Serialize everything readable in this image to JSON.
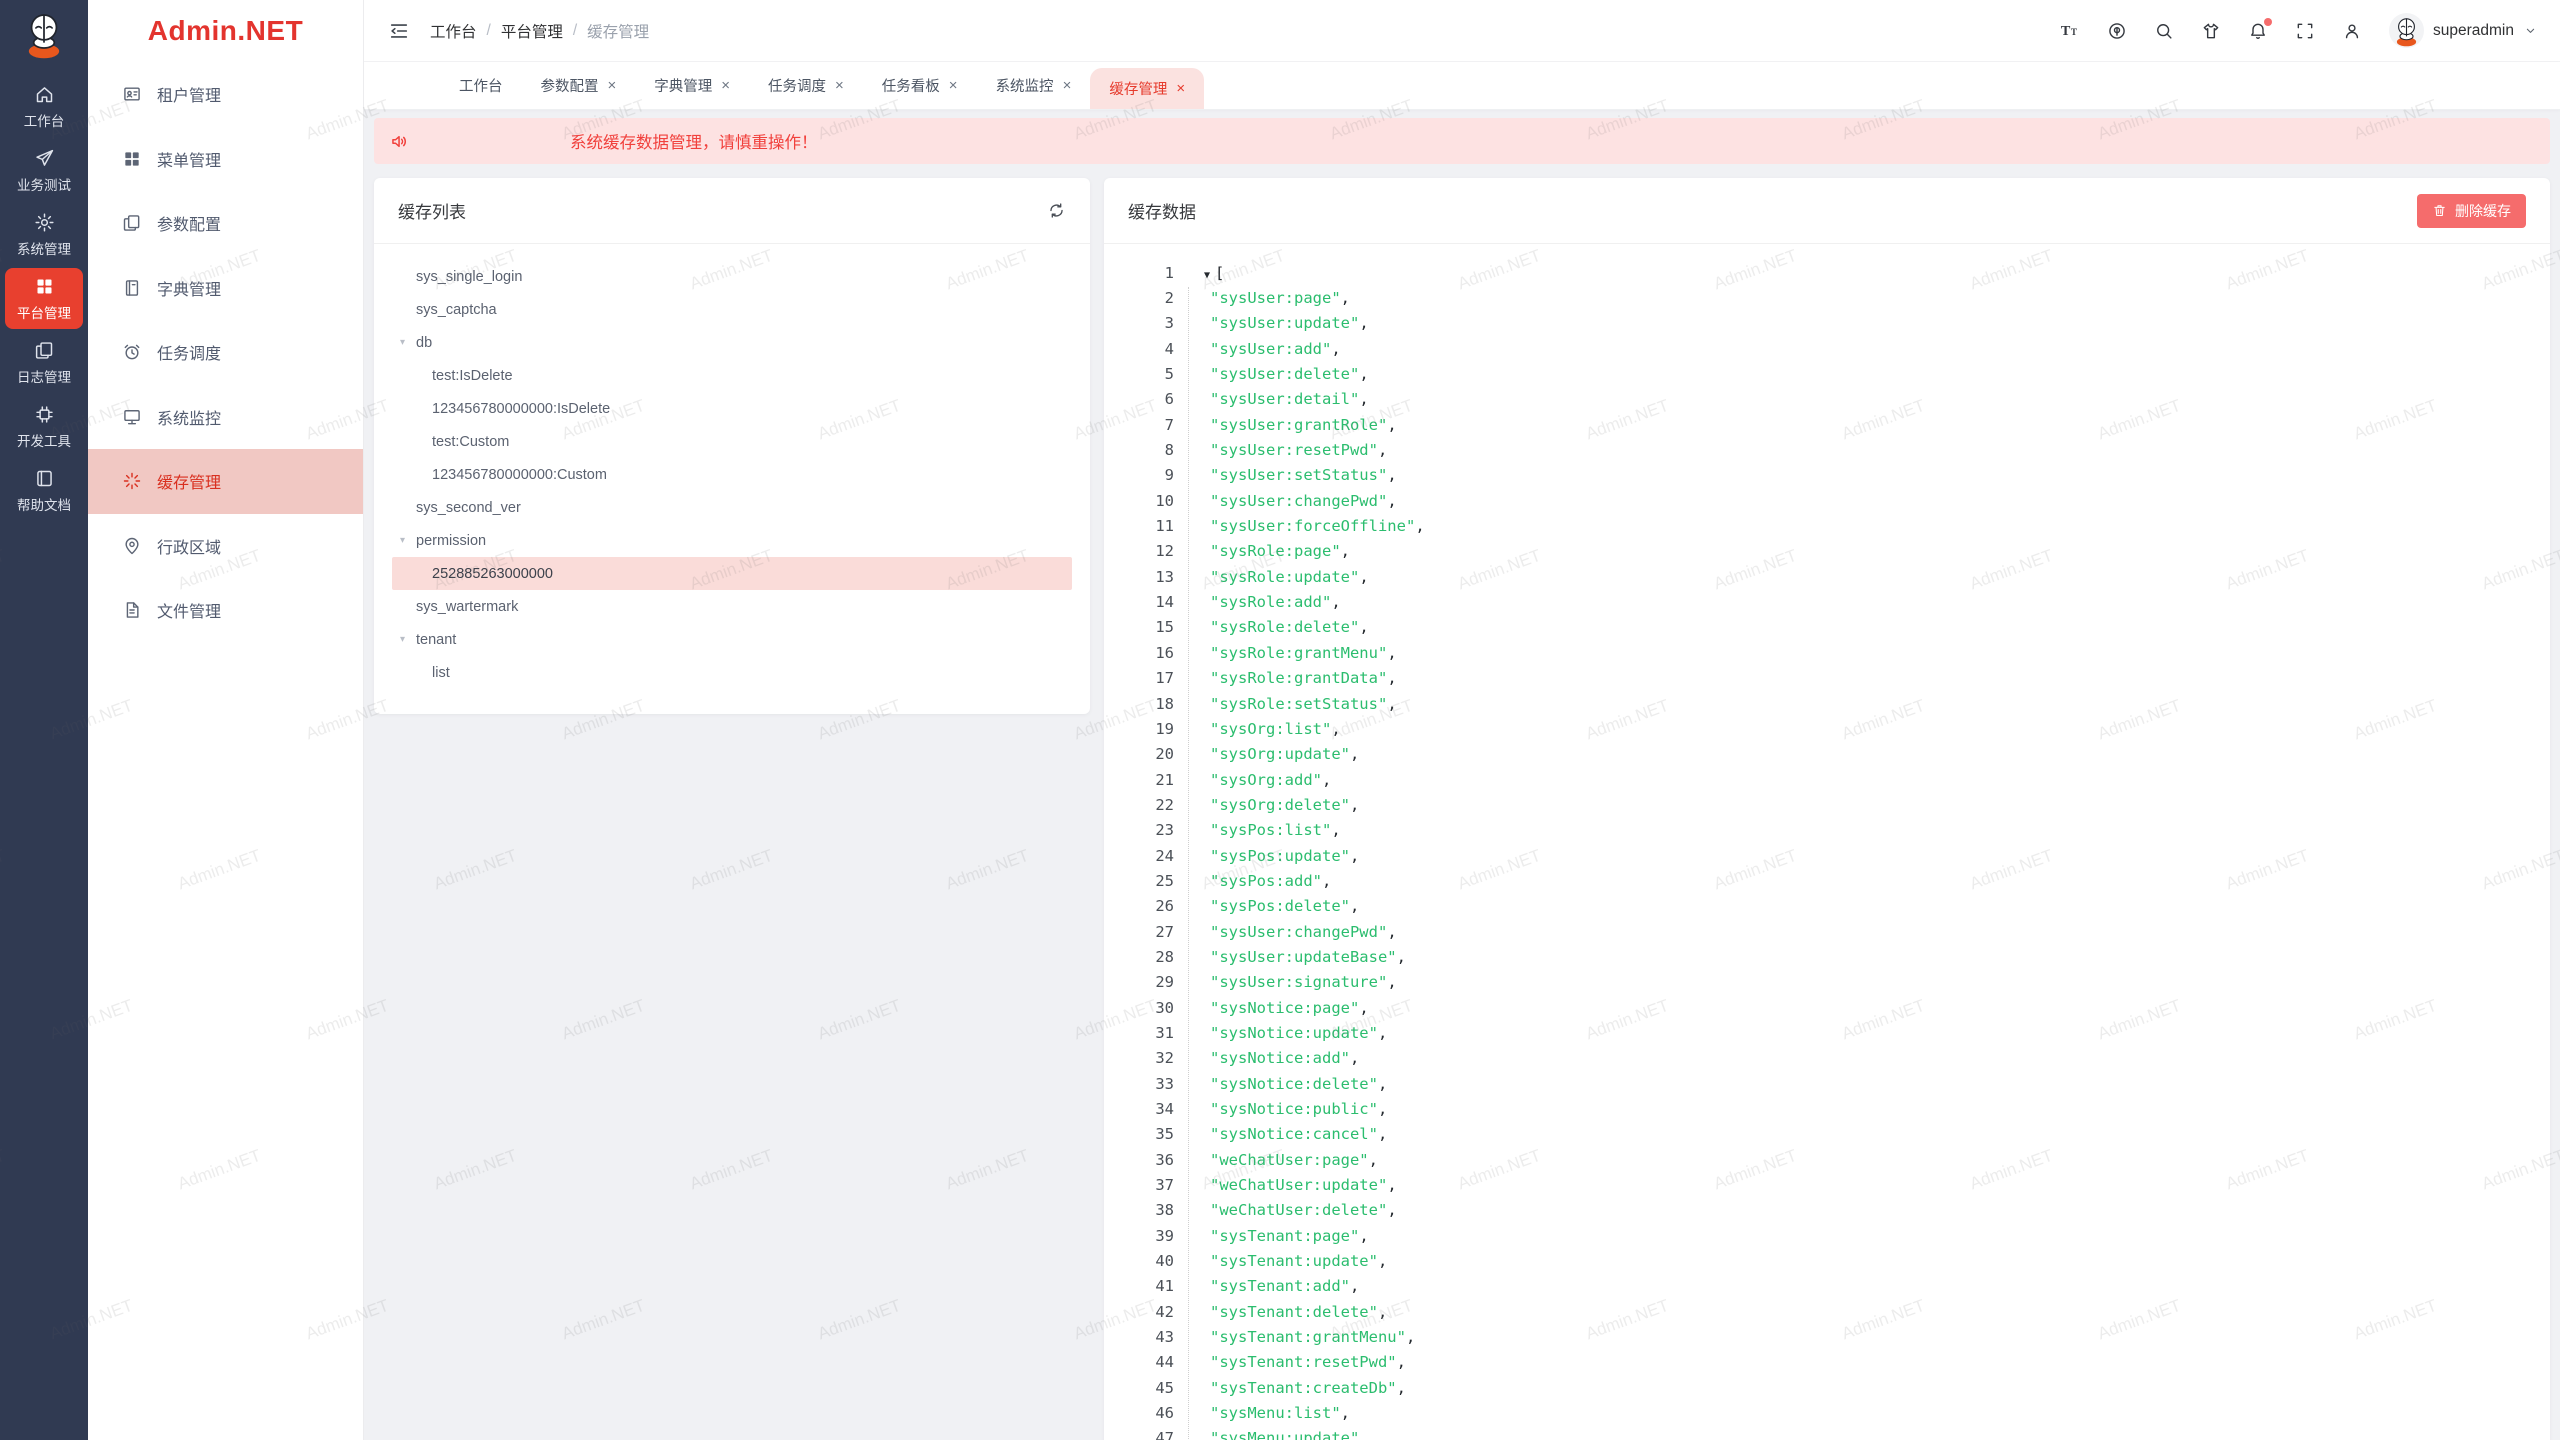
{
  "app": {
    "logo_text": "Admin.NET",
    "watermark_text": "Admin.NET"
  },
  "colors": {
    "accent": "#e8402f",
    "brand_red": "#e3342e",
    "danger": "#f56c6c",
    "string_green": "#2bbd6e",
    "notice_bg": "#fde2e2",
    "notice_red": "#f1403c",
    "tab_active_bg": "#fbe2e0",
    "tab_active_red": "#e63a2c",
    "sidebar_active_bg": "#f1c8c3",
    "sidebar_active_red": "#d92f1f",
    "tree_selected_bg": "#fadcd9",
    "rail_bg": "#303a52"
  },
  "rail": {
    "items": [
      {
        "label": "工作台",
        "icon": "home-icon",
        "active": false
      },
      {
        "label": "业务测试",
        "icon": "send-icon",
        "active": false
      },
      {
        "label": "系统管理",
        "icon": "gear-icon",
        "active": false
      },
      {
        "label": "平台管理",
        "icon": "grid-icon",
        "active": true
      },
      {
        "label": "日志管理",
        "icon": "copy-docs-icon",
        "active": false
      },
      {
        "label": "开发工具",
        "icon": "chip-icon",
        "active": false
      },
      {
        "label": "帮助文档",
        "icon": "book-icon",
        "active": false
      }
    ]
  },
  "sidebar": {
    "items": [
      {
        "label": "租户管理",
        "icon": "id-card-icon",
        "active": false
      },
      {
        "label": "菜单管理",
        "icon": "grid-icon",
        "active": false
      },
      {
        "label": "参数配置",
        "icon": "copy-docs-icon",
        "active": false
      },
      {
        "label": "字典管理",
        "icon": "notebook-icon",
        "active": false
      },
      {
        "label": "任务调度",
        "icon": "alarm-icon",
        "active": false
      },
      {
        "label": "系统监控",
        "icon": "monitor-icon",
        "active": false
      },
      {
        "label": "缓存管理",
        "icon": "spark-icon",
        "active": true
      },
      {
        "label": "行政区域",
        "icon": "location-icon",
        "active": false
      },
      {
        "label": "文件管理",
        "icon": "document-icon",
        "active": false
      }
    ]
  },
  "topbar": {
    "breadcrumb": [
      "工作台",
      "平台管理",
      "缓存管理"
    ],
    "icons": [
      "font-size-icon",
      "language-icon",
      "search-icon",
      "theme-icon",
      "bell-icon",
      "fullscreen-icon",
      "user-icon"
    ],
    "bell_has_badge": true,
    "username": "superadmin"
  },
  "tabs": [
    {
      "label": "工作台",
      "closable": false,
      "active": false
    },
    {
      "label": "参数配置",
      "closable": true,
      "active": false
    },
    {
      "label": "字典管理",
      "closable": true,
      "active": false
    },
    {
      "label": "任务调度",
      "closable": true,
      "active": false
    },
    {
      "label": "任务看板",
      "closable": true,
      "active": false
    },
    {
      "label": "系统监控",
      "closable": true,
      "active": false
    },
    {
      "label": "缓存管理",
      "closable": true,
      "active": true
    }
  ],
  "notice": {
    "text": "系统缓存数据管理，请慎重操作！"
  },
  "cache_list": {
    "title": "缓存列表",
    "tree": [
      {
        "label": "sys_single_login",
        "depth": 0,
        "expandable": false,
        "selected": false
      },
      {
        "label": "sys_captcha",
        "depth": 0,
        "expandable": false,
        "selected": false
      },
      {
        "label": "db",
        "depth": 0,
        "expandable": true,
        "selected": false
      },
      {
        "label": "test:IsDelete",
        "depth": 1,
        "expandable": false,
        "selected": false
      },
      {
        "label": "123456780000000:IsDelete",
        "depth": 1,
        "expandable": false,
        "selected": false
      },
      {
        "label": "test:Custom",
        "depth": 1,
        "expandable": false,
        "selected": false
      },
      {
        "label": "123456780000000:Custom",
        "depth": 1,
        "expandable": false,
        "selected": false
      },
      {
        "label": "sys_second_ver",
        "depth": 0,
        "expandable": false,
        "selected": false
      },
      {
        "label": "permission",
        "depth": 0,
        "expandable": true,
        "selected": false
      },
      {
        "label": "252885263000000",
        "depth": 1,
        "expandable": false,
        "selected": true
      },
      {
        "label": "sys_wartermark",
        "depth": 0,
        "expandable": false,
        "selected": false
      },
      {
        "label": "tenant",
        "depth": 0,
        "expandable": true,
        "selected": false
      },
      {
        "label": "list",
        "depth": 1,
        "expandable": false,
        "selected": false
      }
    ]
  },
  "cache_data": {
    "title": "缓存数据",
    "delete_button": "删除缓存",
    "open_bracket": "[",
    "values": [
      "sysUser:page",
      "sysUser:update",
      "sysUser:add",
      "sysUser:delete",
      "sysUser:detail",
      "sysUser:grantRole",
      "sysUser:resetPwd",
      "sysUser:setStatus",
      "sysUser:changePwd",
      "sysUser:forceOffline",
      "sysRole:page",
      "sysRole:update",
      "sysRole:add",
      "sysRole:delete",
      "sysRole:grantMenu",
      "sysRole:grantData",
      "sysRole:setStatus",
      "sysOrg:list",
      "sysOrg:update",
      "sysOrg:add",
      "sysOrg:delete",
      "sysPos:list",
      "sysPos:update",
      "sysPos:add",
      "sysPos:delete",
      "sysUser:changePwd",
      "sysUser:updateBase",
      "sysUser:signature",
      "sysNotice:page",
      "sysNotice:update",
      "sysNotice:add",
      "sysNotice:delete",
      "sysNotice:public",
      "sysNotice:cancel",
      "weChatUser:page",
      "weChatUser:update",
      "weChatUser:delete",
      "sysTenant:page",
      "sysTenant:update",
      "sysTenant:add",
      "sysTenant:delete",
      "sysTenant:grantMenu",
      "sysTenant:resetPwd",
      "sysTenant:createDb",
      "sysMenu:list",
      "sysMenu:update"
    ]
  }
}
